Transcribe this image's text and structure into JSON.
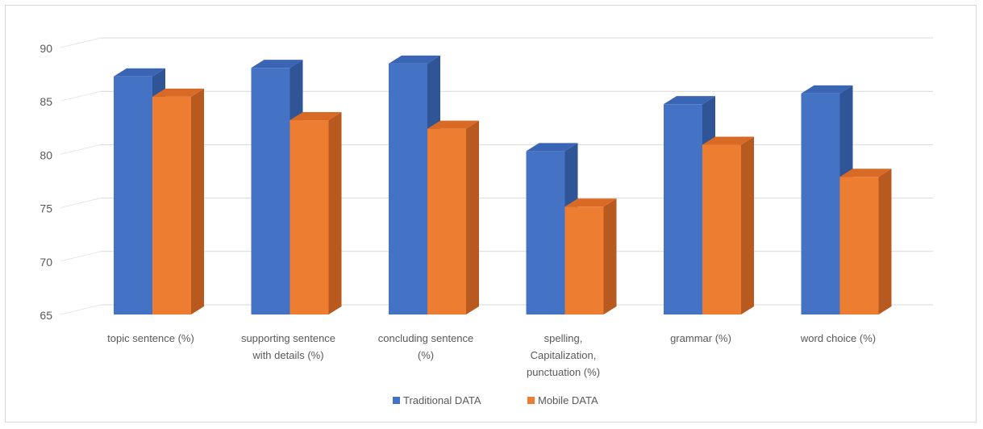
{
  "chart_data": {
    "type": "bar",
    "title": "",
    "xlabel": "",
    "ylabel": "",
    "ylim": [
      65,
      90
    ],
    "yticks": [
      65,
      70,
      75,
      80,
      85,
      90
    ],
    "grid": true,
    "legend_position": "bottom",
    "categories": [
      [
        "topic sentence (%)"
      ],
      [
        "supporting sentence",
        "with details (%)"
      ],
      [
        "concluding sentence",
        "(%)"
      ],
      [
        "spelling,",
        "Capitalization,",
        "punctuation (%)"
      ],
      [
        "grammar (%)"
      ],
      [
        "word choice (%)"
      ]
    ],
    "series": [
      {
        "name": "Traditional DATA",
        "color": "#4472c4",
        "side_color": "#2f5597",
        "top_color": "#3a64b4",
        "values": [
          87.3,
          88.1,
          88.5,
          80.3,
          84.7,
          85.7
        ]
      },
      {
        "name": "Mobile DATA",
        "color": "#ed7d31",
        "side_color": "#b85a1f",
        "top_color": "#d86a25",
        "values": [
          85.4,
          83.2,
          82.4,
          75.1,
          80.9,
          77.9
        ]
      }
    ]
  }
}
